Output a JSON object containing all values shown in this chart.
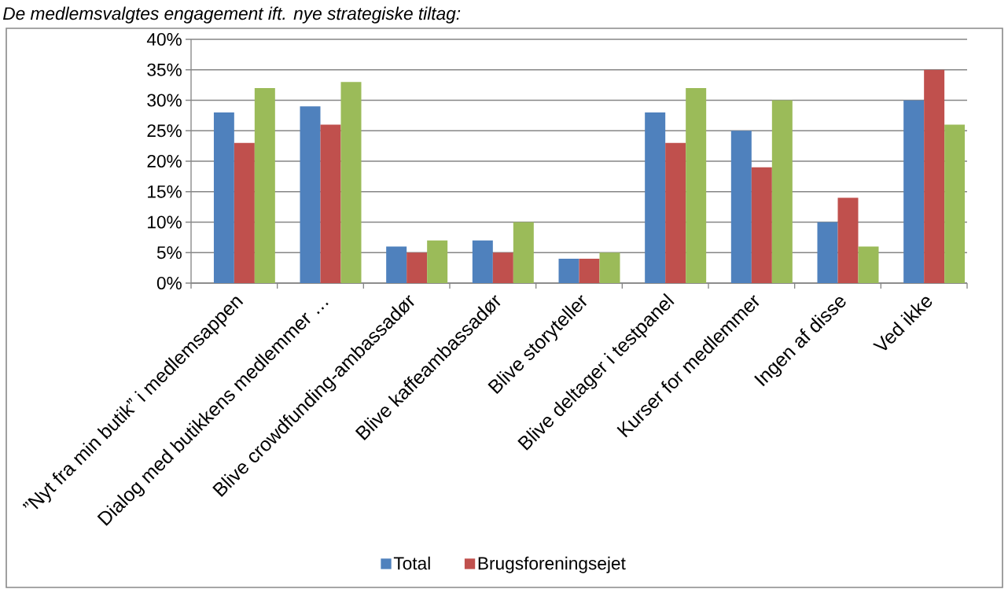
{
  "chart_data": {
    "type": "bar",
    "title": "De medlemsvalgtes engagement ift. nye strategiske tiltag:",
    "categories": [
      "”Nyt fra min butik” i medlemsappen",
      "Dialog med butikkens medlemmer …",
      "Blive crowdfunding-ambassadør",
      "Blive kaffeambassadør",
      "Blive storyteller",
      "Blive deltager i testpanel",
      "Kurser for medlemmer",
      "Ingen af disse",
      "Ved ikke"
    ],
    "series": [
      {
        "name": "Total",
        "color": "#4f81bd",
        "values": [
          28,
          29,
          6,
          7,
          4,
          28,
          25,
          10,
          30
        ]
      },
      {
        "name": "Brugsforeningsejet",
        "color": "#c0504d",
        "values": [
          23,
          26,
          5,
          5,
          4,
          23,
          19,
          14,
          35
        ]
      },
      {
        "color": "#9bbb59",
        "values": [
          32,
          33,
          7,
          10,
          5,
          32,
          30,
          6,
          26
        ]
      }
    ],
    "ylim": [
      0,
      40
    ],
    "yticks": [
      {
        "value": 0,
        "label": "0%"
      },
      {
        "value": 5,
        "label": "5%"
      },
      {
        "value": 10,
        "label": "10%"
      },
      {
        "value": 15,
        "label": "15%"
      },
      {
        "value": 20,
        "label": "20%"
      },
      {
        "value": 25,
        "label": "25%"
      },
      {
        "value": 30,
        "label": "30%"
      },
      {
        "value": 35,
        "label": "35%"
      },
      {
        "value": 40,
        "label": "40%"
      }
    ],
    "grid": "y",
    "legend": "bottom"
  }
}
